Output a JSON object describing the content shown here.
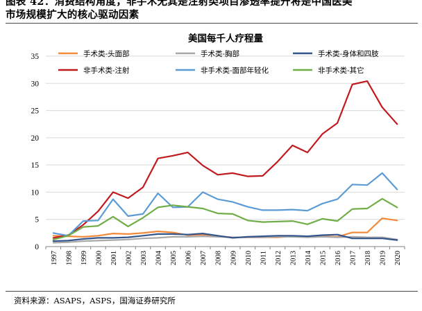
{
  "report": {
    "caption_line1": "图表 42：消费结构角度，非手术无其是注射类项目渗透率提升将是中国医美",
    "caption_line2": "市场规模扩大的核心驱动因素",
    "source": "资料来源：ASAPS，ASPS，国海证券研究所"
  },
  "chart_data": {
    "type": "line",
    "title": "美国每千人疗程量",
    "xlabel": "",
    "ylabel": "",
    "ylim": [
      0,
      35
    ],
    "yticks": [
      0,
      5,
      10,
      15,
      20,
      25,
      30,
      35
    ],
    "grid": true,
    "legend_position": "top",
    "categories": [
      "1997",
      "1998",
      "1999",
      "2000",
      "2001",
      "2002",
      "2003",
      "2004",
      "2005",
      "2006",
      "2007",
      "2008",
      "2009",
      "2010",
      "2011",
      "2012",
      "2013",
      "2014",
      "2015",
      "2016",
      "2017",
      "2018",
      "2019",
      "2020"
    ],
    "series": [
      {
        "name": "手术类-头面部",
        "color": "#F28A3C",
        "values": [
          2.0,
          1.9,
          1.8,
          2.0,
          2.4,
          2.3,
          2.5,
          2.8,
          2.6,
          2.1,
          2.2,
          1.9,
          1.7,
          1.7,
          1.7,
          1.7,
          1.9,
          1.8,
          1.9,
          1.8,
          2.6,
          2.6,
          5.2,
          4.8
        ]
      },
      {
        "name": "手术类-胸部",
        "color": "#A8A8A8",
        "values": [
          0.7,
          0.8,
          1.0,
          1.1,
          1.2,
          1.3,
          1.5,
          1.6,
          1.8,
          1.8,
          1.9,
          1.8,
          1.7,
          1.7,
          1.7,
          1.8,
          1.8,
          1.7,
          1.8,
          1.7,
          1.8,
          1.7,
          1.7,
          1.3
        ]
      },
      {
        "name": "手术类-身体和四肢",
        "color": "#33558C",
        "values": [
          1.0,
          1.1,
          1.4,
          1.6,
          1.6,
          1.7,
          2.0,
          2.3,
          2.3,
          2.2,
          2.4,
          2.0,
          1.6,
          1.8,
          1.9,
          2.0,
          2.0,
          1.9,
          2.1,
          2.2,
          1.5,
          1.5,
          1.5,
          1.2
        ]
      },
      {
        "name": "非手术类-注射",
        "color": "#C0191E",
        "values": [
          1.6,
          2.1,
          4.0,
          6.5,
          10.0,
          8.9,
          10.9,
          16.2,
          16.7,
          17.3,
          14.9,
          13.2,
          13.5,
          12.9,
          13.0,
          15.6,
          18.6,
          17.3,
          20.7,
          22.7,
          29.8,
          30.4,
          25.6,
          22.5
        ]
      },
      {
        "name": "非手术类-面部年轻化",
        "color": "#5B9BD5",
        "values": [
          2.5,
          2.0,
          4.7,
          4.8,
          8.7,
          5.6,
          6.0,
          9.8,
          7.2,
          7.3,
          10.0,
          8.7,
          8.2,
          7.3,
          6.7,
          6.7,
          6.8,
          6.6,
          7.9,
          8.7,
          11.4,
          11.3,
          13.5,
          10.5
        ]
      },
      {
        "name": "非手术类-其它",
        "color": "#70AD47",
        "values": [
          1.3,
          2.0,
          3.6,
          3.8,
          5.5,
          3.7,
          5.3,
          7.2,
          7.6,
          7.3,
          7.0,
          6.1,
          6.0,
          4.8,
          4.5,
          4.6,
          4.7,
          4.1,
          5.1,
          4.7,
          6.9,
          7.0,
          8.8,
          7.2
        ]
      }
    ]
  }
}
